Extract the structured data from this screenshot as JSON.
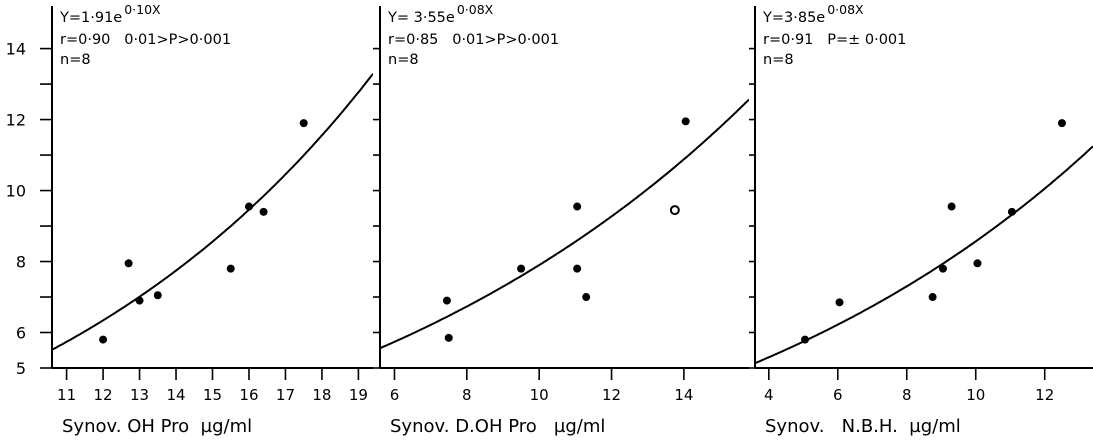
{
  "chart_data": [
    {
      "type": "scatter",
      "equation": {
        "base": "Y=1·91e",
        "exponent": "0·10X",
        "stats_line1": "r=0·90   0·01>P>0·001",
        "stats_line2": "n=8"
      },
      "xlabel": "Synov. OH Pro  µg/ml",
      "xlim": [
        10.6,
        19.4
      ],
      "ylim": [
        5,
        15.2
      ],
      "x_ticks": [
        11,
        12,
        13,
        14,
        15,
        16,
        17,
        18,
        19
      ],
      "y_ticks": [
        5,
        6,
        7,
        8,
        9,
        10,
        11,
        12,
        13,
        14
      ],
      "y_tick_labels": [
        {
          "value": 5,
          "label": "5"
        },
        {
          "value": 6,
          "label": "6"
        },
        {
          "value": 8,
          "label": "8"
        },
        {
          "value": 10,
          "label": "10"
        },
        {
          "value": 12,
          "label": "12"
        },
        {
          "value": 14,
          "label": "14"
        }
      ],
      "points": [
        {
          "x": 12.0,
          "y": 5.8,
          "style": "filled"
        },
        {
          "x": 12.7,
          "y": 7.95,
          "style": "filled"
        },
        {
          "x": 13.0,
          "y": 6.9,
          "style": "filled"
        },
        {
          "x": 13.5,
          "y": 7.05,
          "style": "filled"
        },
        {
          "x": 15.5,
          "y": 7.8,
          "style": "filled"
        },
        {
          "x": 16.0,
          "y": 9.55,
          "style": "filled"
        },
        {
          "x": 16.4,
          "y": 9.4,
          "style": "filled"
        },
        {
          "x": 17.5,
          "y": 11.9,
          "style": "filled"
        }
      ],
      "fit": {
        "a": 1.91,
        "b": 0.1
      }
    },
    {
      "type": "scatter",
      "equation": {
        "base": "Y= 3·55e",
        "exponent": "0·08X",
        "stats_line1": "r=0·85   0·01>P>0·001",
        "stats_line2": "n=8"
      },
      "xlabel": "Synov. D.OH Pro   µg/ml",
      "xlim": [
        5.6,
        15.8
      ],
      "ylim": [
        5,
        15.2
      ],
      "x_ticks": [
        6,
        8,
        10,
        12,
        14
      ],
      "y_ticks": [
        5,
        6,
        7,
        8,
        9,
        10,
        11,
        12,
        13,
        14
      ],
      "y_tick_labels": [],
      "points": [
        {
          "x": 7.45,
          "y": 6.9,
          "style": "filled"
        },
        {
          "x": 7.5,
          "y": 5.85,
          "style": "filled"
        },
        {
          "x": 9.5,
          "y": 7.8,
          "style": "filled"
        },
        {
          "x": 11.05,
          "y": 9.55,
          "style": "filled"
        },
        {
          "x": 11.05,
          "y": 7.8,
          "style": "filled"
        },
        {
          "x": 11.3,
          "y": 7.0,
          "style": "filled"
        },
        {
          "x": 13.75,
          "y": 9.45,
          "style": "open"
        },
        {
          "x": 14.05,
          "y": 11.95,
          "style": "filled"
        }
      ],
      "fit": {
        "a": 3.55,
        "b": 0.08
      }
    },
    {
      "type": "scatter",
      "equation": {
        "base": "Y=3·85e",
        "exponent": "0·08X",
        "stats_line1": "r=0·91   P=± 0·001",
        "stats_line2": "n=8"
      },
      "xlabel": "Synov.   N.B.H.  µg/ml",
      "xlim": [
        3.6,
        13.4
      ],
      "ylim": [
        5,
        15.2
      ],
      "x_ticks": [
        4,
        6,
        8,
        10,
        12
      ],
      "y_ticks": [
        5,
        6,
        7,
        8,
        9,
        10,
        11,
        12,
        13,
        14
      ],
      "y_tick_labels": [],
      "points": [
        {
          "x": 5.05,
          "y": 5.8,
          "style": "filled"
        },
        {
          "x": 6.05,
          "y": 6.85,
          "style": "filled"
        },
        {
          "x": 8.75,
          "y": 7.0,
          "style": "filled"
        },
        {
          "x": 9.05,
          "y": 7.8,
          "style": "filled"
        },
        {
          "x": 9.3,
          "y": 9.55,
          "style": "filled"
        },
        {
          "x": 10.05,
          "y": 7.95,
          "style": "filled"
        },
        {
          "x": 11.05,
          "y": 9.4,
          "style": "filled"
        },
        {
          "x": 12.5,
          "y": 11.9,
          "style": "filled"
        }
      ],
      "fit": {
        "a": 3.85,
        "b": 0.08
      }
    }
  ]
}
